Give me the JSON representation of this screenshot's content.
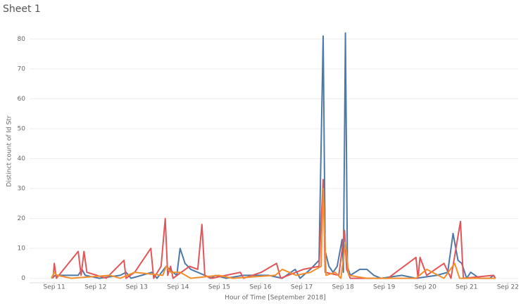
{
  "chart_data": {
    "type": "line",
    "title": "Sheet 1",
    "x_label": "Hour of Time [September 2018]",
    "y_label": "Distinct count of Id Str",
    "xlim": [
      10.4,
      22.25
    ],
    "ylim": [
      -1.5,
      86
    ],
    "xticks": [
      {
        "value": 11,
        "label": "Sep 11"
      },
      {
        "value": 12,
        "label": "Sep 12"
      },
      {
        "value": 13,
        "label": "Sep 13"
      },
      {
        "value": 14,
        "label": "Sep 14"
      },
      {
        "value": 15,
        "label": "Sep 15"
      },
      {
        "value": 16,
        "label": "Sep 16"
      },
      {
        "value": 17,
        "label": "Sep 17"
      },
      {
        "value": 18,
        "label": "Sep 18"
      },
      {
        "value": 19,
        "label": "Sep 19"
      },
      {
        "value": 20,
        "label": "Sep 20"
      },
      {
        "value": 21,
        "label": "Sep 21"
      },
      {
        "value": 22,
        "label": "Sep 22"
      }
    ],
    "yticks": [
      0,
      10,
      20,
      30,
      40,
      50,
      60,
      70,
      80
    ],
    "grid": true,
    "series": [
      {
        "color": "#4e79a7",
        "x": [
          10.93,
          11.03,
          11.58,
          11.67,
          11.75,
          12.09,
          12.6,
          12.74,
          12.86,
          13.12,
          13.37,
          13.49,
          13.71,
          13.88,
          13.97,
          14.05,
          14.17,
          14.31,
          14.65,
          14.79,
          14.91,
          15.16,
          15.59,
          16.19,
          16.53,
          16.84,
          16.96,
          17.21,
          17.42,
          17.52,
          17.57,
          17.66,
          17.76,
          17.86,
          17.98,
          18.01,
          18.06,
          18.11,
          18.18,
          18.41,
          18.58,
          18.75,
          18.92,
          19.43,
          19.77,
          20.28,
          20.54,
          20.67,
          20.79,
          20.88,
          21.0,
          21.1,
          21.31,
          21.56,
          21.65,
          21.7
        ],
        "values": [
          0,
          1,
          1,
          3,
          1,
          0,
          1,
          2,
          0,
          1,
          2,
          0,
          4,
          2,
          1,
          10,
          5,
          3,
          1,
          0,
          1,
          0,
          1,
          1,
          0,
          3,
          0,
          3,
          6,
          81,
          9,
          4,
          2,
          4,
          13,
          2,
          82,
          4,
          1,
          3,
          3,
          1,
          0,
          1,
          0,
          1,
          2,
          15,
          6,
          5,
          0,
          2,
          0,
          0,
          1,
          0
        ]
      },
      {
        "color": "#e15759",
        "x": [
          10.97,
          11.0,
          11.05,
          11.58,
          11.65,
          11.72,
          11.79,
          12.26,
          12.69,
          12.74,
          12.95,
          13.34,
          13.41,
          13.59,
          13.69,
          13.75,
          13.82,
          13.88,
          14.28,
          14.48,
          14.58,
          14.65,
          14.82,
          15.51,
          15.59,
          16.02,
          16.39,
          16.49,
          17.04,
          17.42,
          17.52,
          17.57,
          17.9,
          18.04,
          18.09,
          18.18,
          19.09,
          19.77,
          19.82,
          19.87,
          20.03,
          20.45,
          20.62,
          20.85,
          20.92,
          21.65,
          21.7
        ],
        "values": [
          0,
          5,
          0,
          9,
          1,
          9,
          2,
          0,
          6,
          0,
          2,
          10,
          0,
          4,
          20,
          1,
          4,
          0,
          4,
          3,
          18,
          1,
          0,
          2,
          0,
          2,
          5,
          0,
          3,
          4,
          33,
          2,
          1,
          16,
          3,
          0,
          0,
          7,
          0,
          7,
          1,
          5,
          0,
          19,
          0,
          1,
          0
        ]
      },
      {
        "color": "#f28e2b",
        "x": [
          10.93,
          11.0,
          11.07,
          11.41,
          12.35,
          12.6,
          12.95,
          13.63,
          13.71,
          13.83,
          14.05,
          14.31,
          14.99,
          15.33,
          16.36,
          16.53,
          16.87,
          17.21,
          17.47,
          17.52,
          17.59,
          17.81,
          17.95,
          18.06,
          18.14,
          18.58,
          19.77,
          20.03,
          20.45,
          20.71,
          20.83,
          21.7
        ],
        "values": [
          0,
          2,
          1,
          0,
          1,
          0,
          2,
          1,
          4,
          2,
          2,
          0,
          1,
          0,
          1,
          3,
          1,
          2,
          4,
          30,
          1,
          2,
          0,
          12,
          1,
          0,
          0,
          3,
          0,
          5,
          0,
          0
        ]
      }
    ]
  }
}
